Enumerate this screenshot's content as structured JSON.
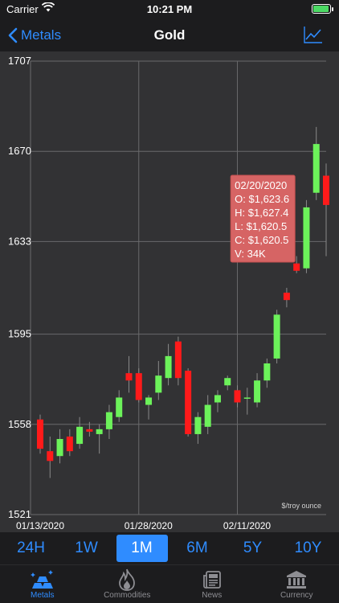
{
  "status": {
    "carrier": "Carrier",
    "time": "10:21 PM"
  },
  "nav": {
    "back_label": "Metals",
    "title": "Gold"
  },
  "chart_data": {
    "type": "candlestick",
    "unit": "$/troy ounce",
    "ylim": [
      1521,
      1707
    ],
    "y_ticks": [
      "1707",
      "1670",
      "1633",
      "1595",
      "1558",
      "1521"
    ],
    "x_labels": [
      "01/13/2020",
      "01/28/2020",
      "02/11/2020"
    ],
    "colors": {
      "up": "#6cf25a",
      "down": "#ff1a1a",
      "wick": "#8a8a8a",
      "grid": "#6a6a6c"
    },
    "candles": [
      {
        "o": 1560.0,
        "h": 1562.0,
        "l": 1546.0,
        "c": 1548.0
      },
      {
        "o": 1547.0,
        "h": 1553.0,
        "l": 1536.0,
        "c": 1543.0
      },
      {
        "o": 1545.0,
        "h": 1556.0,
        "l": 1542.0,
        "c": 1552.0
      },
      {
        "o": 1553.0,
        "h": 1556.0,
        "l": 1545.0,
        "c": 1547.0
      },
      {
        "o": 1550.0,
        "h": 1561.0,
        "l": 1548.0,
        "c": 1557.0
      },
      {
        "o": 1556.0,
        "h": 1559.0,
        "l": 1553.0,
        "c": 1555.0
      },
      {
        "o": 1554.0,
        "h": 1558.0,
        "l": 1546.0,
        "c": 1556.0
      },
      {
        "o": 1556.0,
        "h": 1566.0,
        "l": 1552.0,
        "c": 1563.0
      },
      {
        "o": 1561.0,
        "h": 1572.0,
        "l": 1559.0,
        "c": 1569.0
      },
      {
        "o": 1579.0,
        "h": 1586.0,
        "l": 1571.0,
        "c": 1576.0
      },
      {
        "o": 1579.0,
        "h": 1581.0,
        "l": 1567.0,
        "c": 1568.0
      },
      {
        "o": 1566.0,
        "h": 1570.0,
        "l": 1560.0,
        "c": 1569.0
      },
      {
        "o": 1571.0,
        "h": 1584.0,
        "l": 1568.0,
        "c": 1578.0
      },
      {
        "o": 1577.0,
        "h": 1591.0,
        "l": 1574.0,
        "c": 1586.0
      },
      {
        "o": 1592.0,
        "h": 1594.0,
        "l": 1574.0,
        "c": 1577.0
      },
      {
        "o": 1580.0,
        "h": 1581.0,
        "l": 1553.0,
        "c": 1554.0
      },
      {
        "o": 1554.0,
        "h": 1563.0,
        "l": 1550.0,
        "c": 1561.0
      },
      {
        "o": 1557.0,
        "h": 1570.0,
        "l": 1554.0,
        "c": 1566.0
      },
      {
        "o": 1567.0,
        "h": 1572.0,
        "l": 1563.0,
        "c": 1570.0
      },
      {
        "o": 1574.0,
        "h": 1578.0,
        "l": 1572.0,
        "c": 1577.0
      },
      {
        "o": 1572.0,
        "h": 1574.0,
        "l": 1565.0,
        "c": 1567.0
      },
      {
        "o": 1569.0,
        "h": 1573.0,
        "l": 1562.0,
        "c": 1569.0
      },
      {
        "o": 1567.0,
        "h": 1579.0,
        "l": 1565.0,
        "c": 1576.0
      },
      {
        "o": 1576.0,
        "h": 1585.0,
        "l": 1573.0,
        "c": 1583.0
      },
      {
        "o": 1585.0,
        "h": 1605.0,
        "l": 1583.0,
        "c": 1603.0
      },
      {
        "o": 1612.0,
        "h": 1614.0,
        "l": 1606.0,
        "c": 1609.0
      },
      {
        "o": 1624.0,
        "h": 1627.0,
        "l": 1620.0,
        "c": 1621.0
      },
      {
        "o": 1622.0,
        "h": 1650.0,
        "l": 1620.0,
        "c": 1647.0
      },
      {
        "o": 1653.0,
        "h": 1680.0,
        "l": 1650.0,
        "c": 1673.0
      },
      {
        "o": 1660.0,
        "h": 1665.0,
        "l": 1627.0,
        "c": 1648.0
      }
    ],
    "x_label_indices": [
      0,
      10,
      20
    ],
    "tooltip": {
      "index": 26,
      "date": "02/20/2020",
      "open": "O: $1,623.6",
      "high": "H: $1,627.4",
      "low": "L: $1,620.5",
      "close": "C: $1,620.5",
      "volume": "V: 34K"
    }
  },
  "ranges": [
    {
      "label": "24H",
      "active": false
    },
    {
      "label": "1W",
      "active": false
    },
    {
      "label": "1M",
      "active": true
    },
    {
      "label": "6M",
      "active": false
    },
    {
      "label": "5Y",
      "active": false
    },
    {
      "label": "10Y",
      "active": false
    }
  ],
  "tabs": [
    {
      "label": "Metals",
      "icon": "gold-bars-icon",
      "active": true
    },
    {
      "label": "Commodities",
      "icon": "flame-icon",
      "active": false
    },
    {
      "label": "News",
      "icon": "newspaper-icon",
      "active": false
    },
    {
      "label": "Currency",
      "icon": "bank-icon",
      "active": false
    }
  ]
}
